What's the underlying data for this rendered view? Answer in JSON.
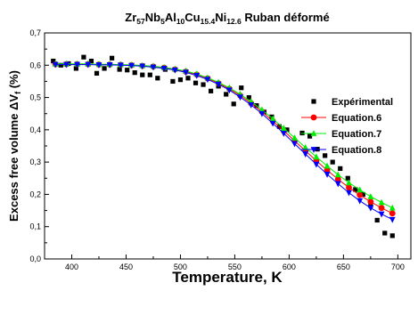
{
  "chart_data": {
    "type": "scatter",
    "title": {
      "parts": [
        {
          "text": "Zr",
          "sub": false
        },
        {
          "text": "57",
          "sub": true
        },
        {
          "text": "Nb",
          "sub": false
        },
        {
          "text": "5",
          "sub": true
        },
        {
          "text": "Al",
          "sub": false
        },
        {
          "text": "10",
          "sub": true
        },
        {
          "text": "Cu",
          "sub": false
        },
        {
          "text": "15.4",
          "sub": true
        },
        {
          "text": "Ni",
          "sub": false
        },
        {
          "text": "12.6",
          "sub": true
        },
        {
          "text": " Ruban déformé",
          "sub": false
        }
      ]
    },
    "xlabel": "Temperature, K",
    "ylabel": {
      "prefix": "Excess free volume ",
      "delta": "ΔV",
      "sub": "f",
      "suffix": " (%)"
    },
    "xlim": [
      375,
      712
    ],
    "ylim": [
      0.0,
      0.7
    ],
    "x_ticks": [
      400,
      450,
      500,
      550,
      600,
      650,
      700
    ],
    "y_ticks": [
      "0,0",
      "0,1",
      "0,2",
      "0,3",
      "0,4",
      "0,5",
      "0,6",
      "0,7"
    ],
    "y_tick_values": [
      0.0,
      0.1,
      0.2,
      0.3,
      0.4,
      0.5,
      0.6,
      0.7
    ],
    "grid": false,
    "legend_placement": "right",
    "series": [
      {
        "name": "Expérimental",
        "marker": "square",
        "color": "#000000",
        "line": false,
        "x": [
          383,
          390,
          397,
          404,
          411,
          418,
          423,
          430,
          437,
          444,
          451,
          458,
          465,
          472,
          479,
          486,
          493,
          500,
          507,
          514,
          521,
          528,
          535,
          542,
          549,
          556,
          563,
          570,
          577,
          584,
          591,
          598,
          605,
          612,
          619,
          626,
          633,
          640,
          647,
          654,
          661,
          668,
          675,
          681,
          688,
          695
        ],
        "y": [
          0.613,
          0.6,
          0.605,
          0.59,
          0.625,
          0.613,
          0.575,
          0.59,
          0.622,
          0.587,
          0.585,
          0.577,
          0.57,
          0.57,
          0.56,
          0.587,
          0.55,
          0.555,
          0.56,
          0.545,
          0.54,
          0.52,
          0.535,
          0.51,
          0.48,
          0.53,
          0.5,
          0.475,
          0.455,
          0.44,
          0.41,
          0.4,
          0.365,
          0.39,
          0.38,
          0.34,
          0.32,
          0.3,
          0.28,
          0.25,
          0.215,
          0.2,
          0.165,
          0.12,
          0.08,
          0.072
        ]
      },
      {
        "name": "Equation.6",
        "marker": "circle",
        "color": "#ff0000",
        "line": true,
        "x": [
          385,
          395,
          405,
          415,
          425,
          435,
          445,
          455,
          465,
          475,
          485,
          495,
          505,
          515,
          525,
          535,
          545,
          555,
          565,
          575,
          585,
          595,
          605,
          615,
          625,
          635,
          645,
          655,
          665,
          675,
          685,
          695
        ],
        "y": [
          0.603,
          0.603,
          0.603,
          0.603,
          0.602,
          0.602,
          0.601,
          0.6,
          0.598,
          0.596,
          0.592,
          0.587,
          0.58,
          0.571,
          0.559,
          0.544,
          0.527,
          0.506,
          0.482,
          0.456,
          0.427,
          0.397,
          0.366,
          0.335,
          0.304,
          0.275,
          0.247,
          0.221,
          0.198,
          0.177,
          0.158,
          0.141
        ]
      },
      {
        "name": "Equation.7",
        "marker": "triangle-up",
        "color": "#00ee00",
        "line": true,
        "x": [
          385,
          395,
          405,
          415,
          425,
          435,
          445,
          455,
          465,
          475,
          485,
          495,
          505,
          515,
          525,
          535,
          545,
          555,
          565,
          575,
          585,
          595,
          605,
          615,
          625,
          635,
          645,
          655,
          665,
          675,
          685,
          695
        ],
        "y": [
          0.604,
          0.604,
          0.604,
          0.604,
          0.603,
          0.603,
          0.602,
          0.601,
          0.599,
          0.597,
          0.593,
          0.588,
          0.582,
          0.573,
          0.561,
          0.547,
          0.53,
          0.51,
          0.487,
          0.462,
          0.434,
          0.405,
          0.375,
          0.345,
          0.316,
          0.288,
          0.261,
          0.236,
          0.214,
          0.193,
          0.175,
          0.158
        ]
      },
      {
        "name": "Equation.8",
        "marker": "triangle-down",
        "color": "#0000ff",
        "line": true,
        "x": [
          385,
          395,
          405,
          415,
          425,
          435,
          445,
          455,
          465,
          475,
          485,
          495,
          505,
          515,
          525,
          535,
          545,
          555,
          565,
          575,
          585,
          595,
          605,
          615,
          625,
          635,
          645,
          655,
          665,
          675,
          685,
          695
        ],
        "y": [
          0.602,
          0.602,
          0.602,
          0.602,
          0.601,
          0.601,
          0.6,
          0.599,
          0.597,
          0.594,
          0.59,
          0.585,
          0.578,
          0.568,
          0.556,
          0.541,
          0.523,
          0.501,
          0.477,
          0.45,
          0.42,
          0.389,
          0.357,
          0.325,
          0.293,
          0.262,
          0.233,
          0.205,
          0.18,
          0.158,
          0.139,
          0.122
        ]
      }
    ]
  }
}
